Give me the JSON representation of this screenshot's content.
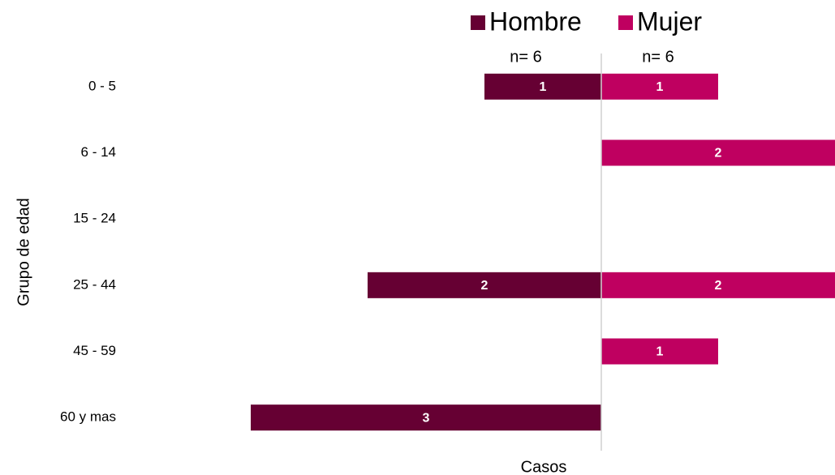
{
  "chart_data": {
    "type": "pyramid",
    "categories": [
      "0 - 5",
      "6 - 14",
      "15 - 24",
      "25 - 44",
      "45 - 59",
      "60 y mas"
    ],
    "series": [
      {
        "name": "Hombre",
        "color": "#660033",
        "values": [
          1,
          0,
          0,
          2,
          0,
          3
        ]
      },
      {
        "name": "Mujer",
        "color": "#bf0060",
        "values": [
          1,
          2,
          0,
          2,
          1,
          0
        ]
      }
    ],
    "annotations": [
      "n= 6",
      "n= 6"
    ],
    "xlim": [
      -3,
      2
    ],
    "x_label": "Casos",
    "y_label": "Grupo de edad",
    "legend": "top"
  }
}
